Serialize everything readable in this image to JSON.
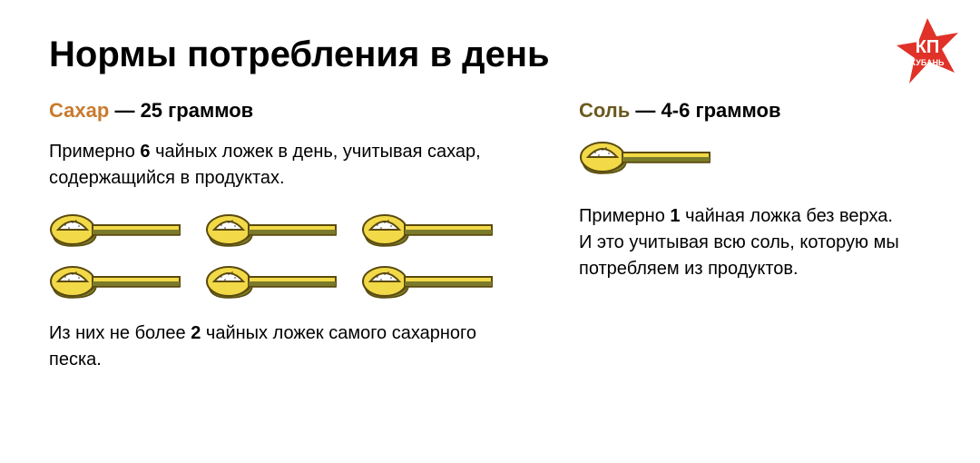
{
  "title": "Нормы потребления в день",
  "sugar": {
    "label": "Сахар",
    "label_color": "#c97a2e",
    "amount": "25 граммов",
    "desc1_pre": "Примерно ",
    "desc1_bold": "6",
    "desc1_post": " чайных ложек в день, учитывая сахар, содержащийся в продуктах.",
    "desc2_pre": "Из них не более ",
    "desc2_bold": "2",
    "desc2_post": " чайных ложек самого сахарного песка.",
    "spoon_rows": 2,
    "spoons_per_row": 3
  },
  "salt": {
    "label": "Соль",
    "label_color": "#6b5a1f",
    "amount": "4-6 граммов",
    "desc_pre": "Примерно ",
    "desc_bold": "1",
    "desc_post": " чайная ложка без верха.",
    "desc2": "И это учитывая всю соль, которую мы потребляем из продуктов.",
    "spoons": 1
  },
  "spoon_style": {
    "fill_light": "#f2d947",
    "fill_dark": "#7a7a2a",
    "stroke": "#5a4a0f",
    "content_fill": "#ffffff",
    "width": 150,
    "height": 40
  },
  "logo": {
    "star_color": "#e03228",
    "text_color": "#ffffff",
    "text1": "КП",
    "text2": "КУБАНЬ"
  }
}
